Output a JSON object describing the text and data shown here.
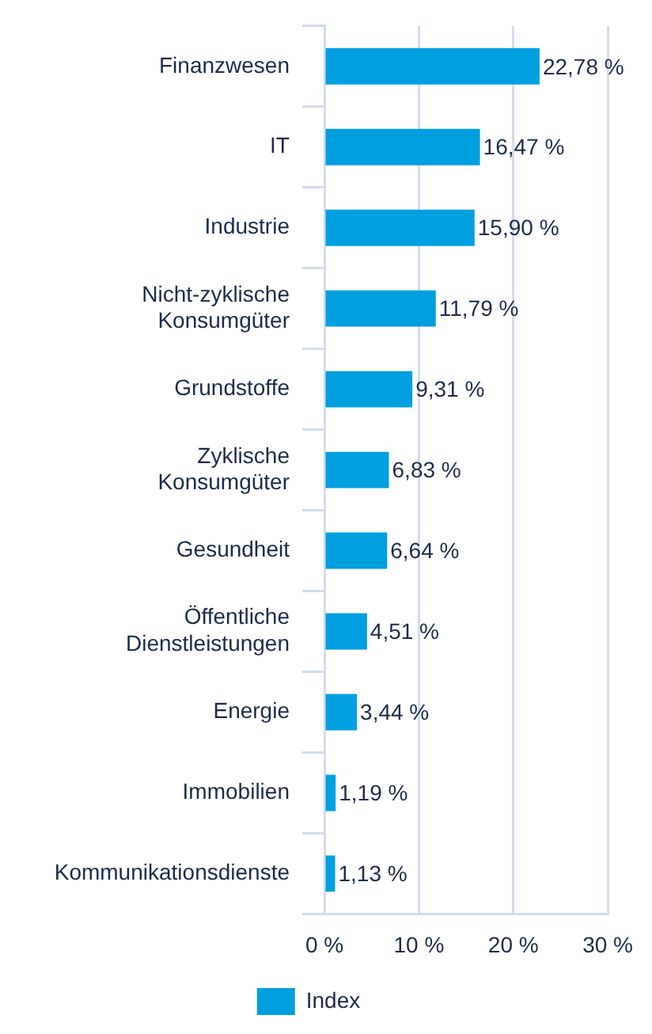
{
  "chart_data": {
    "type": "bar",
    "orientation": "horizontal",
    "categories": [
      "Finanzwesen",
      "IT",
      "Industrie",
      "Nicht-zyklische Konsumgüter",
      "Grundstoffe",
      "Zyklische Konsumgüter",
      "Gesundheit",
      "Öffentliche Dienstleistungen",
      "Energie",
      "Immobilien",
      "Kommunikationsdienste"
    ],
    "series": [
      {
        "name": "Index",
        "color": "#009fe0",
        "values": [
          22.78,
          16.47,
          15.9,
          11.79,
          9.31,
          6.83,
          6.64,
          4.51,
          3.44,
          1.19,
          1.13
        ],
        "value_labels": [
          "22,78 %",
          "16,47 %",
          "15,90 %",
          "11,79 %",
          "9,31 %",
          "6,83 %",
          "6,64 %",
          "4,51 %",
          "3,44 %",
          "1,19 %",
          "1,13 %"
        ]
      }
    ],
    "xlim": [
      0,
      30
    ],
    "xticks": [
      {
        "value": 0,
        "label": "0 %"
      },
      {
        "value": 10,
        "label": "10 %"
      },
      {
        "value": 20,
        "label": "20 %"
      },
      {
        "value": 30,
        "label": "30 %"
      }
    ],
    "grid": "x",
    "legend": "bottom"
  }
}
